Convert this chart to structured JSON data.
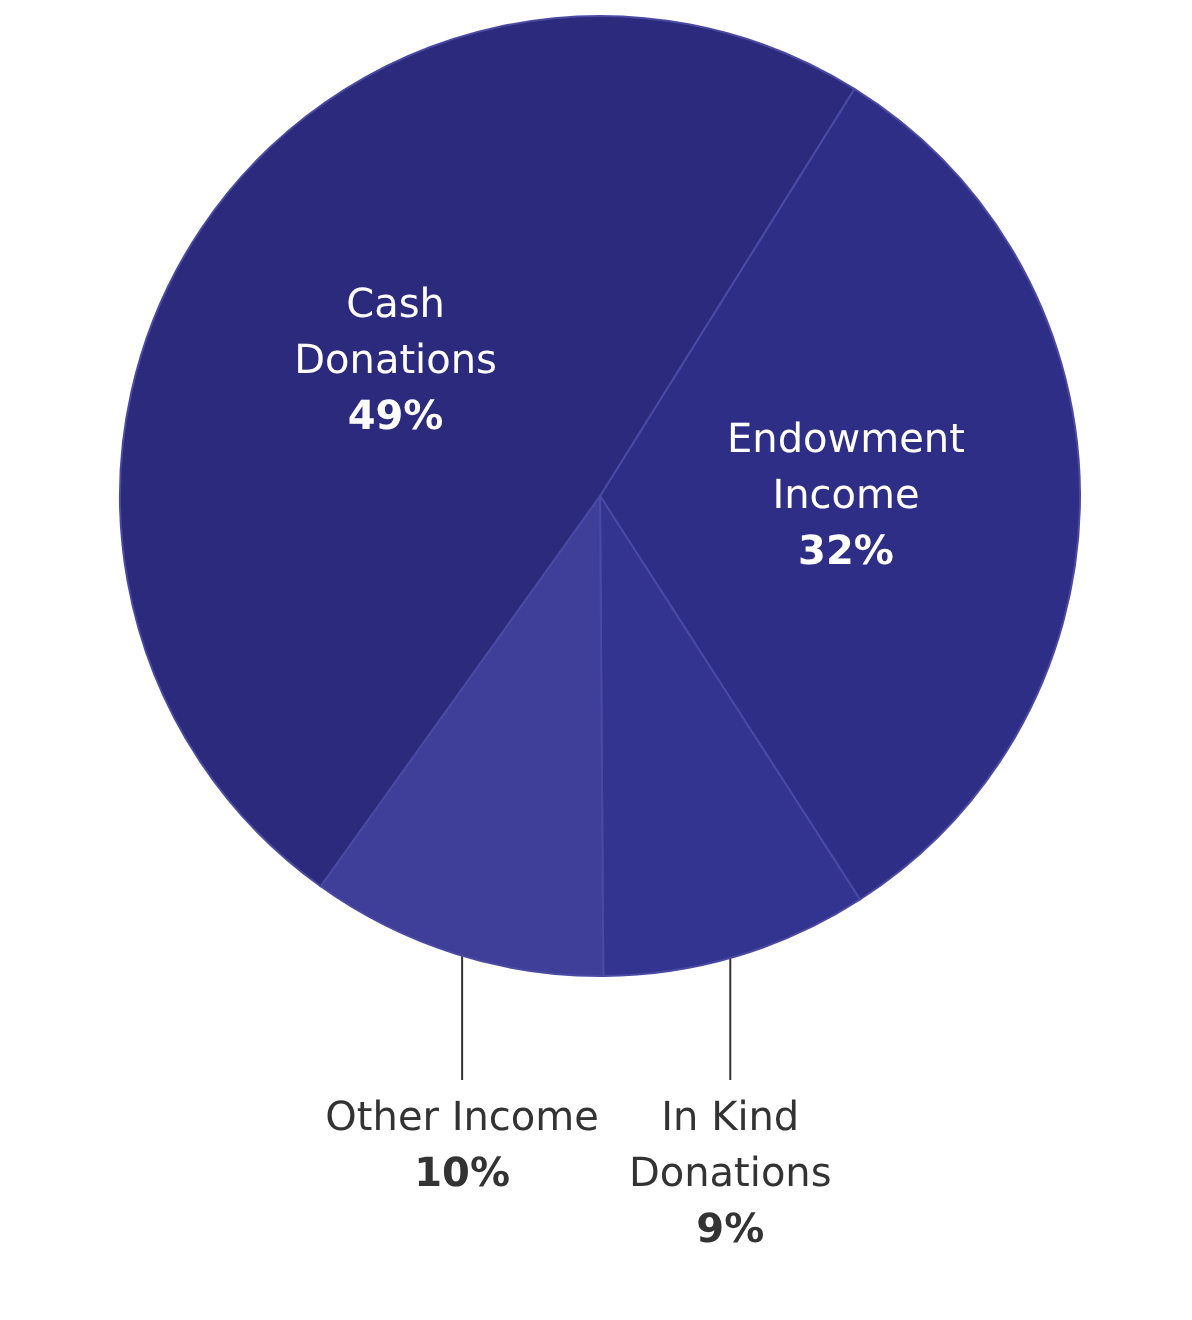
{
  "chart_data": {
    "type": "pie",
    "categories": [
      "Endowment Income",
      "In Kind Donations",
      "Other Income",
      "Cash Donations"
    ],
    "values": [
      32,
      9,
      10,
      49
    ],
    "value_labels": [
      "32%",
      "9%",
      "10%",
      "49%"
    ],
    "colors": [
      "#2f2e86",
      "#33348f",
      "#3f3f99",
      "#2c2a7c"
    ],
    "legend": false
  }
}
